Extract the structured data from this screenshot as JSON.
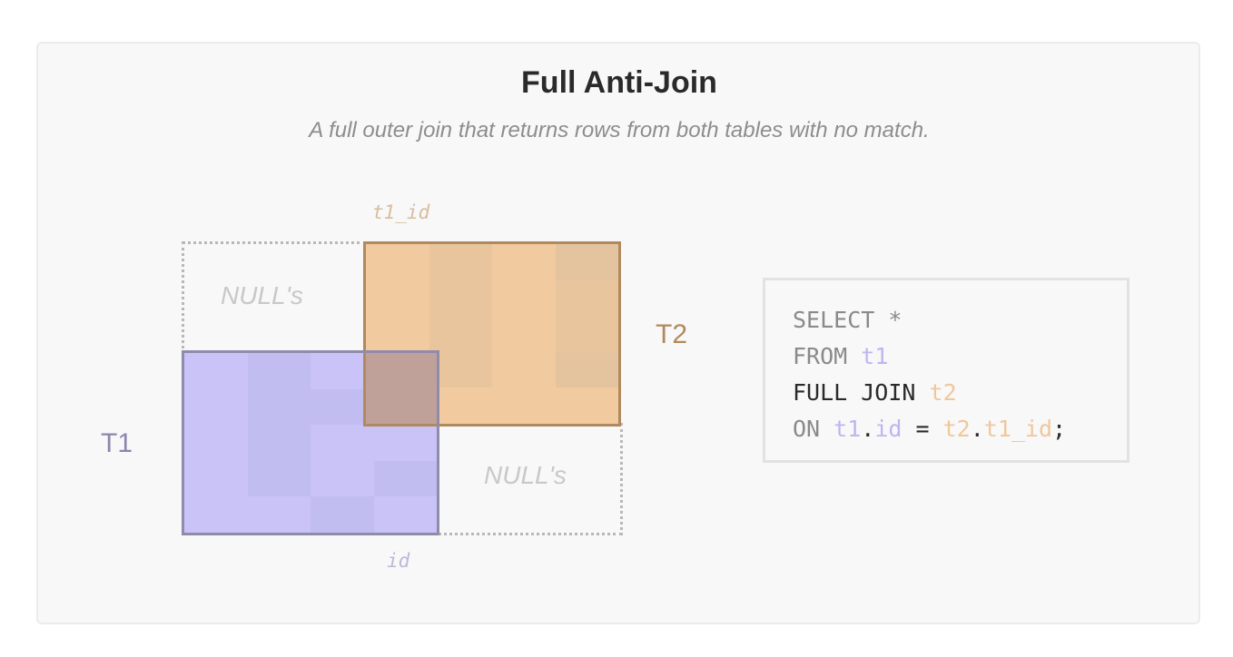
{
  "card": {
    "title": "Full Anti-Join",
    "subtitle": "A full outer join that returns rows from both tables with no match."
  },
  "diagram": {
    "t1": {
      "label": "T1",
      "column": "id",
      "label_color": "#8d86ad",
      "fill": "#c9c3f7",
      "border": "#908aab",
      "cell_colors": [
        "#c9c3f7",
        "#c2bdf0",
        "#c9c3f7",
        "#c9c3f7",
        "#c9c3f7",
        "#c2bdf0",
        "#c2bdf0",
        "#c9c3f7",
        "#c9c3f7",
        "#c2bdf0",
        "#c9c3f7",
        "#c9c3f7",
        "#c9c3f7",
        "#c2bdf0",
        "#c9c3f7",
        "#c2bdf0",
        "#c9c3f7",
        "#c9c3f7",
        "#c2bdf0",
        "#c9c3f7"
      ]
    },
    "t2": {
      "label": "T2",
      "column": "t1_id",
      "label_color": "#b08a5e",
      "fill": "#f2caa0",
      "border": "#b08a5e",
      "cell_colors": [
        "#f2caa0",
        "#e9c59d",
        "#f2caa0",
        "#e4c49f",
        "#f2caa0",
        "#e9c59d",
        "#f2caa0",
        "#e9c59d",
        "#f2caa0",
        "#e9c59d",
        "#f2caa0",
        "#e9c59d",
        "#f2caa0",
        "#e9c59d",
        "#f2caa0",
        "#e4c49f",
        "#f2caa0",
        "#f2caa0",
        "#f2caa0",
        "#f2caa0"
      ]
    },
    "null_label_top": "NULL's",
    "null_label_bottom": "NULL's"
  },
  "sql": {
    "colors": {
      "keyword": "#8a8a8a",
      "strong": "#2a2a2a",
      "t1": "#bdb6f0",
      "t2": "#f0c79a"
    },
    "lines": [
      [
        {
          "text": "SELECT *",
          "role": "keyword"
        }
      ],
      [
        {
          "text": "FROM ",
          "role": "keyword"
        },
        {
          "text": "t1",
          "role": "t1"
        }
      ],
      [
        {
          "text": "FULL JOIN ",
          "role": "strong"
        },
        {
          "text": "t2",
          "role": "t2"
        }
      ],
      [
        {
          "text": "ON ",
          "role": "keyword"
        },
        {
          "text": "t1",
          "role": "t1"
        },
        {
          "text": ".",
          "role": "strong"
        },
        {
          "text": "id",
          "role": "t1"
        },
        {
          "text": " = ",
          "role": "strong"
        },
        {
          "text": "t2",
          "role": "t2"
        },
        {
          "text": ".",
          "role": "strong"
        },
        {
          "text": "t1_id",
          "role": "t2"
        },
        {
          "text": ";",
          "role": "strong"
        }
      ]
    ]
  }
}
